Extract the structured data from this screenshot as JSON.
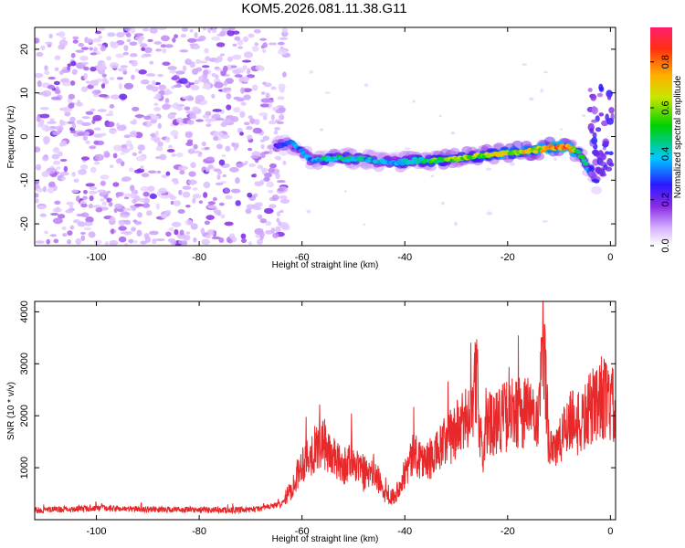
{
  "title": "KOM5.2026.081.11.38.G11",
  "chart_data": [
    {
      "type": "heatmap",
      "name": "spectrogram",
      "xlabel": "Height of straight line (km)",
      "ylabel": "Frequency (Hz)",
      "xlim": [
        -112,
        1
      ],
      "ylim": [
        -25,
        25
      ],
      "xticks": [
        -100,
        -80,
        -60,
        -40,
        -20,
        0
      ],
      "yticks": [
        20,
        10,
        0,
        -10,
        -20
      ],
      "colorbar": {
        "label": "Normalized spectral amplitude",
        "range": [
          0.0,
          0.95
        ],
        "ticks": [
          0.0,
          0.2,
          0.4,
          0.6,
          0.8
        ],
        "colormap": "purple-blue-cyan-green-yellow-orange-red"
      },
      "noise_region": {
        "x_range": [
          -112,
          -63
        ],
        "freq_range": [
          -25,
          25
        ],
        "amplitude": 0.1
      },
      "trace": {
        "description": "Doppler frequency trace of the signal",
        "points": [
          {
            "x": -65,
            "f": -2.0,
            "amp": 0.25
          },
          {
            "x": -62,
            "f": -1.5,
            "amp": 0.35
          },
          {
            "x": -58,
            "f": -5.5,
            "amp": 0.35
          },
          {
            "x": -54,
            "f": -5.0,
            "amp": 0.5
          },
          {
            "x": -50,
            "f": -5.0,
            "amp": 0.45
          },
          {
            "x": -46,
            "f": -5.5,
            "amp": 0.4
          },
          {
            "x": -42,
            "f": -6.0,
            "amp": 0.4
          },
          {
            "x": -38,
            "f": -5.5,
            "amp": 0.45
          },
          {
            "x": -34,
            "f": -5.5,
            "amp": 0.55
          },
          {
            "x": -30,
            "f": -5.0,
            "amp": 0.65
          },
          {
            "x": -26,
            "f": -4.5,
            "amp": 0.6
          },
          {
            "x": -22,
            "f": -4.0,
            "amp": 0.65
          },
          {
            "x": -18,
            "f": -3.5,
            "amp": 0.75
          },
          {
            "x": -14,
            "f": -3.0,
            "amp": 0.7
          },
          {
            "x": -11,
            "f": -2.5,
            "amp": 0.85
          },
          {
            "x": -8,
            "f": -2.5,
            "amp": 0.8
          },
          {
            "x": -6,
            "f": -4.0,
            "amp": 0.55
          },
          {
            "x": -4,
            "f": -8.0,
            "amp": 0.35
          },
          {
            "x": -2.5,
            "f": -11.0,
            "amp": 0.25
          }
        ]
      },
      "edge_cluster": {
        "x_range": [
          -4,
          0.5
        ],
        "freq_range": [
          -10,
          12
        ],
        "amplitude": 0.3
      }
    },
    {
      "type": "line",
      "name": "snr",
      "xlabel": "Height of straight line (km)",
      "ylabel": "SNR (10 * v/v)",
      "xlim": [
        -112,
        1
      ],
      "ylim": [
        0,
        4200
      ],
      "xticks": [
        -100,
        -80,
        -60,
        -40,
        -20,
        0
      ],
      "yticks": [
        1000,
        2000,
        3000,
        4000
      ],
      "color": "#e8292b",
      "series": [
        {
          "name": "SNR",
          "x": [
            -112,
            -100,
            -90,
            -80,
            -70,
            -64,
            -62,
            -60,
            -58,
            -56,
            -54,
            -52,
            -50,
            -48,
            -46,
            -44,
            -42,
            -40,
            -38,
            -36,
            -34,
            -32,
            -30,
            -28,
            -26,
            -25,
            -24,
            -22,
            -20,
            -18,
            -16,
            -14,
            -13,
            -12,
            -10,
            -8,
            -6,
            -4,
            -2,
            0,
            1
          ],
          "y": [
            180,
            220,
            200,
            190,
            180,
            300,
            600,
            1100,
            1300,
            1500,
            1200,
            1000,
            1200,
            800,
            950,
            500,
            450,
            900,
            1300,
            1100,
            1250,
            1500,
            1700,
            1900,
            2700,
            1200,
            1800,
            1950,
            2000,
            2050,
            2100,
            1800,
            3400,
            1500,
            1400,
            2000,
            1800,
            2100,
            2400,
            2200,
            2150
          ]
        }
      ]
    }
  ]
}
